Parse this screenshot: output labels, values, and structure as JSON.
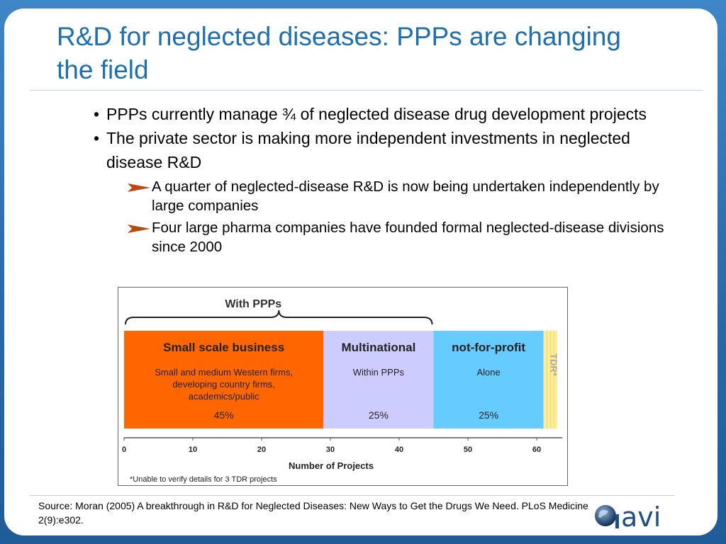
{
  "slide": {
    "title": "R&D for neglected diseases: PPPs are changing the field",
    "bullets": [
      {
        "text": "PPPs currently manage ¾ of neglected disease drug development projects"
      },
      {
        "text": "The private sector is making more independent investments in neglected disease R&D"
      }
    ],
    "sub_bullets": [
      {
        "text": "A quarter of neglected-disease R&D is now being undertaken independently by large companies"
      },
      {
        "text": "Four large pharma companies have founded formal neglected-disease divisions since 2000"
      }
    ],
    "source": "Source: Moran (2005) A breakthrough in R&D for Neglected Diseases: New Ways to Get the Drugs We Need. PLoS Medicine 2(9):e302.",
    "logo_text": "avi"
  },
  "colors": {
    "title": "#1d6fb0",
    "small_scale": "#ff6600",
    "within_ppps": "#ccccff",
    "alone": "#66ccff",
    "tdr": "#ffee99"
  },
  "chart_data": {
    "type": "bar",
    "orientation": "horizontal-stacked",
    "brace_label": "With PPPs",
    "xlabel": "Number of Projects",
    "xlim": [
      0,
      65
    ],
    "xticks": [
      0,
      10,
      20,
      30,
      40,
      50,
      60
    ],
    "segments": [
      {
        "header": "Small scale business",
        "desc": [
          "Small and medium Western firms,",
          "developing country firms,",
          "academics/public"
        ],
        "pct": "45%",
        "start": 0,
        "end": 29,
        "color": "#ff6600"
      },
      {
        "header": "Multinational",
        "desc": [
          "Within PPPs"
        ],
        "pct": "25%",
        "start": 29,
        "end": 45,
        "color": "#ccccff"
      },
      {
        "header": "not-for-profit",
        "desc": [
          "Alone"
        ],
        "pct": "25%",
        "start": 45,
        "end": 61,
        "color": "#66ccff"
      },
      {
        "header": "",
        "desc": [],
        "pct": "",
        "vertical_label": "TDR*",
        "start": 61,
        "end": 63,
        "color": "#ffee99"
      }
    ],
    "footnote": "*Unable to verify details for 3 TDR projects"
  }
}
